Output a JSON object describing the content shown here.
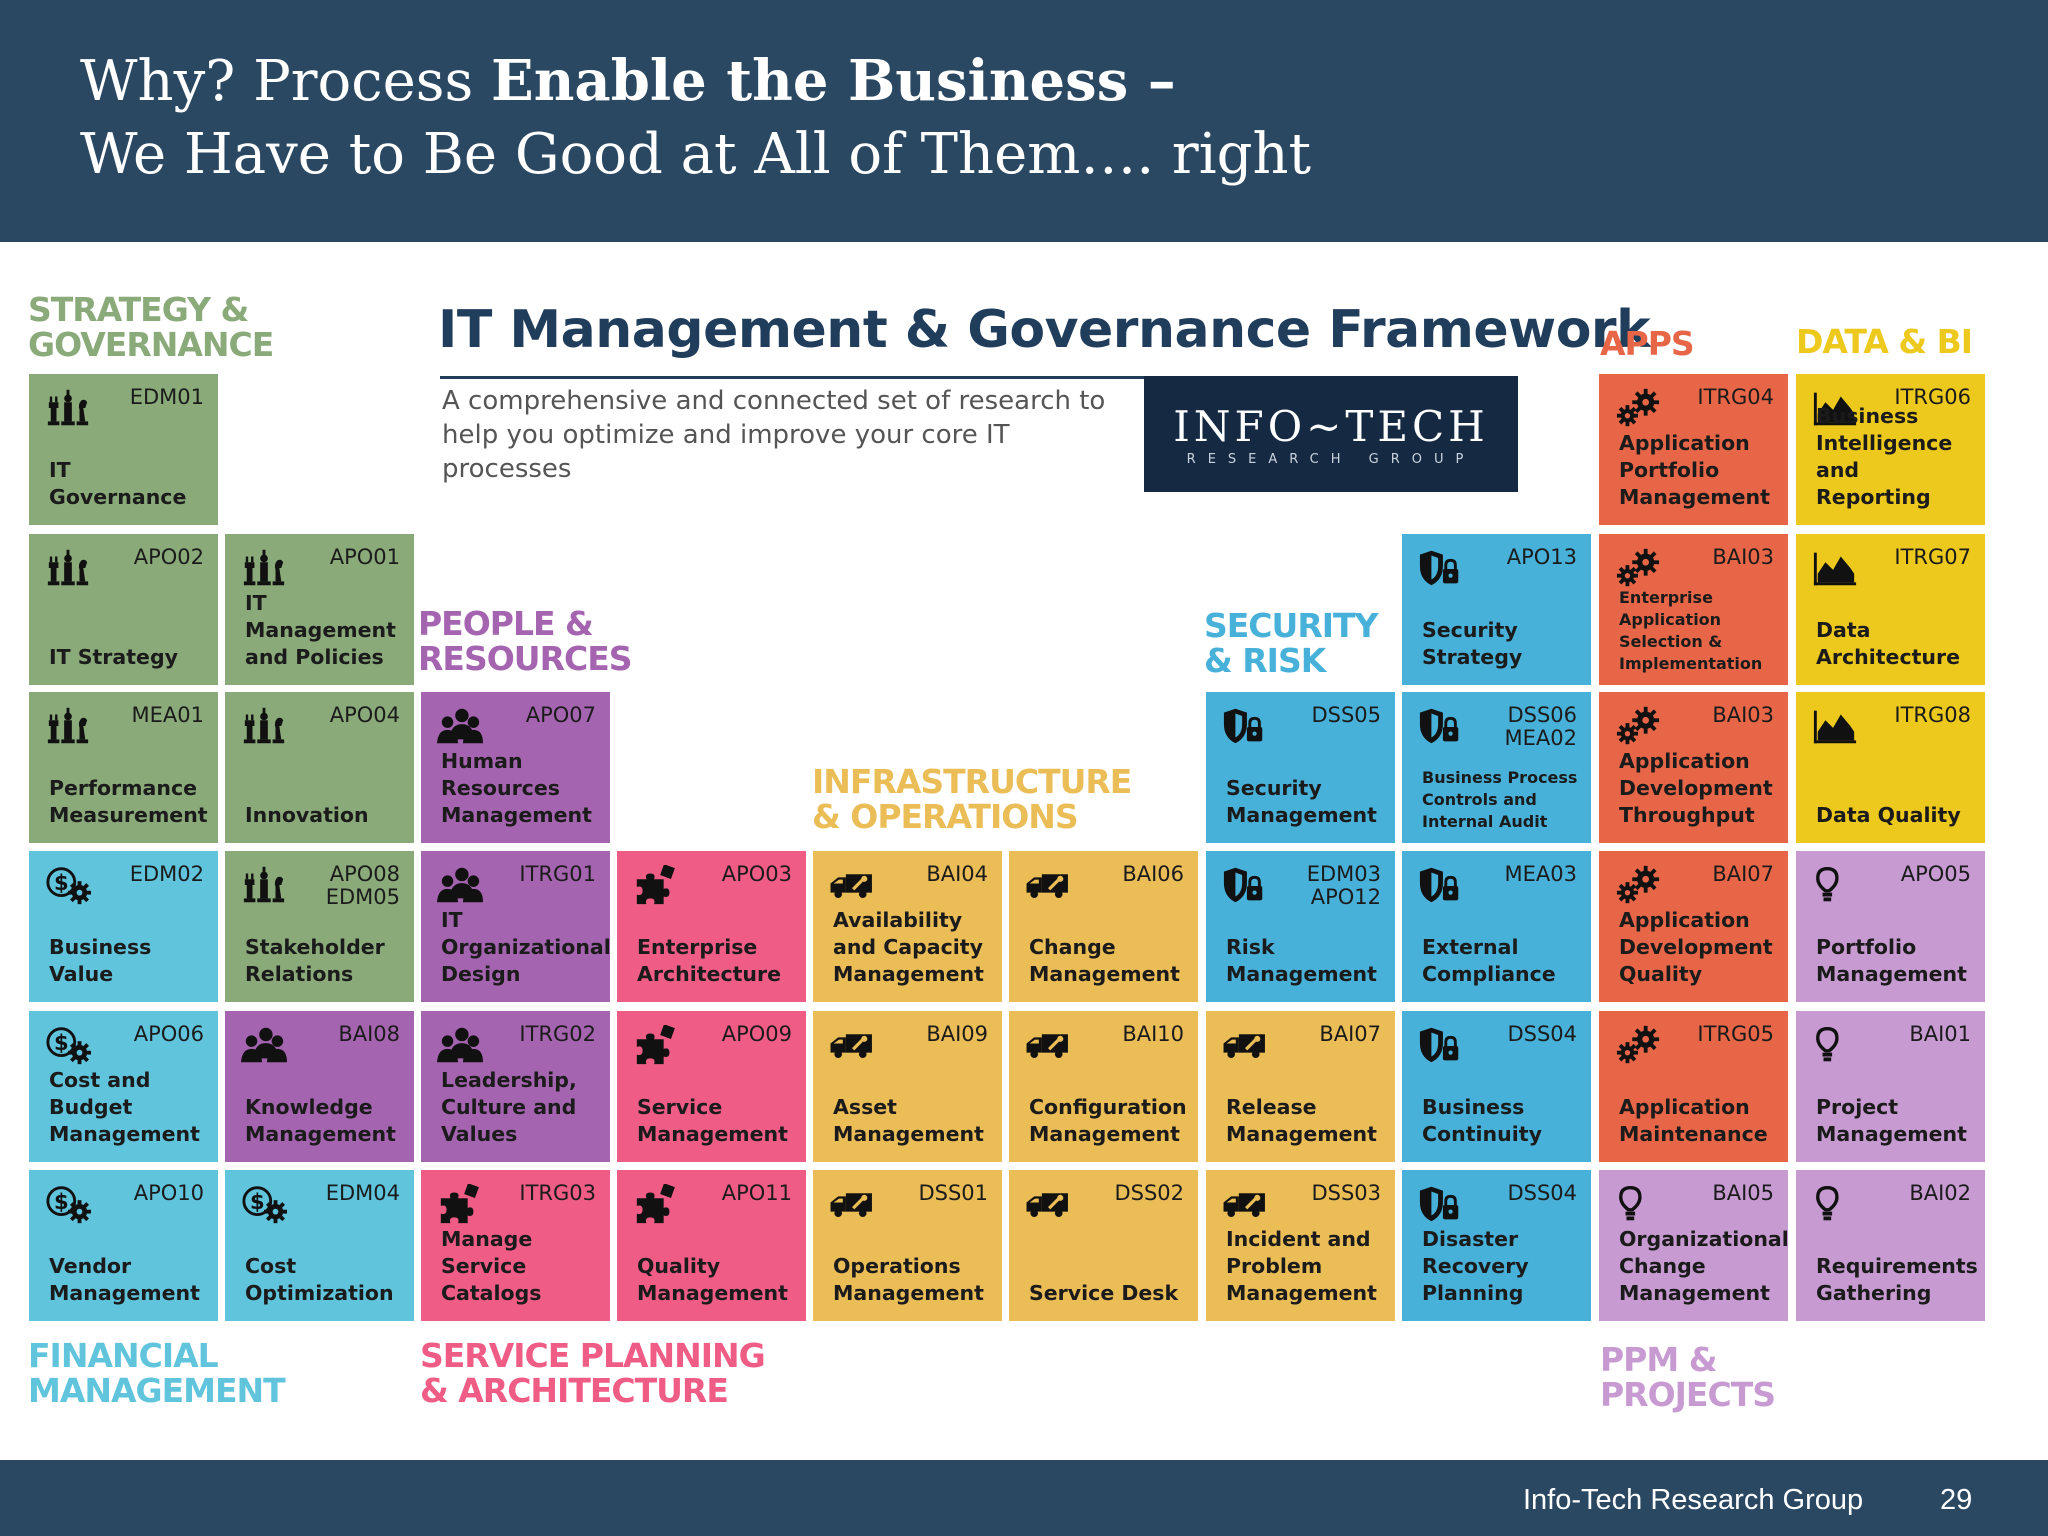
{
  "slide": {
    "title_line1_prefix": "Why? Process ",
    "title_line1_bold": "Enable the Business –",
    "title_line2": "We Have to Be Good at All of Them…. right"
  },
  "framework": {
    "title": "IT Management & Governance Framework",
    "subtitle": "A comprehensive and connected set of research to help you optimize and improve your core IT processes",
    "logo_main": "INFO~TECH",
    "logo_sub": "RESEARCH GROUP"
  },
  "categories": {
    "strategy_l1": "STRATEGY &",
    "strategy_l2": "GOVERNANCE",
    "apps": "APPS",
    "data": "DATA & BI",
    "people_l1": "PEOPLE &",
    "people_l2": "RESOURCES",
    "security_l1": "SECURITY",
    "security_l2": "& RISK",
    "infra_l1": "INFRASTRUCTURE",
    "infra_l2": "& OPERATIONS",
    "financial_l1": "FINANCIAL",
    "financial_l2": "MANAGEMENT",
    "service_l1": "SERVICE PLANNING",
    "service_l2": "& ARCHITECTURE",
    "ppm_l1": "PPM &",
    "ppm_l2": "PROJECTS"
  },
  "tiles": {
    "edm01": {
      "code_a": "EDM01",
      "code_b": "",
      "name": "IT Governance",
      "icon": "chess-icon",
      "color": "#8aaa7a"
    },
    "apo02": {
      "code_a": "APO02",
      "code_b": "",
      "name": "IT Strategy",
      "icon": "chess-icon",
      "color": "#8aaa7a"
    },
    "apo01": {
      "code_a": "APO01",
      "code_b": "",
      "name": "IT Management and Policies",
      "icon": "chess-icon",
      "color": "#8aaa7a"
    },
    "mea01": {
      "code_a": "MEA01",
      "code_b": "",
      "name": "Performance Measurement",
      "icon": "chess-icon",
      "color": "#8aaa7a"
    },
    "apo04": {
      "code_a": "APO04",
      "code_b": "",
      "name": "Innovation",
      "icon": "chess-icon",
      "color": "#8aaa7a"
    },
    "edm02": {
      "code_a": "EDM02",
      "code_b": "",
      "name": "Business Value",
      "icon": "dollar-gear-icon",
      "color": "#5fc4dc"
    },
    "apo08": {
      "code_a": "APO08",
      "code_b": "EDM05",
      "name": "Stakeholder Relations",
      "icon": "chess-icon",
      "color": "#8aaa7a"
    },
    "apo06": {
      "code_a": "APO06",
      "code_b": "",
      "name": "Cost and Budget Management",
      "icon": "dollar-gear-icon",
      "color": "#5fc4dc"
    },
    "bai08": {
      "code_a": "BAI08",
      "code_b": "",
      "name": "Knowledge Management",
      "icon": "people-icon",
      "color": "#a564b0"
    },
    "apo10": {
      "code_a": "APO10",
      "code_b": "",
      "name": "Vendor Management",
      "icon": "dollar-gear-icon",
      "color": "#5fc4dc"
    },
    "edm04": {
      "code_a": "EDM04",
      "code_b": "",
      "name": "Cost Optimization",
      "icon": "dollar-gear-icon",
      "color": "#5fc4dc"
    },
    "apo07": {
      "code_a": "APO07",
      "code_b": "",
      "name": "Human Resources Management",
      "icon": "people-icon",
      "color": "#a564b0"
    },
    "itrg01": {
      "code_a": "ITRG01",
      "code_b": "",
      "name": "IT Organizational Design",
      "icon": "people-icon",
      "color": "#a564b0"
    },
    "itrg02": {
      "code_a": "ITRG02",
      "code_b": "",
      "name": "Leadership, Culture and Values",
      "icon": "people-icon",
      "color": "#a564b0"
    },
    "itrg03": {
      "code_a": "ITRG03",
      "code_b": "",
      "name": "Manage Service Catalogs",
      "icon": "puzzle-icon",
      "color": "#ef5c86"
    },
    "apo03": {
      "code_a": "APO03",
      "code_b": "",
      "name": "Enterprise Architecture",
      "icon": "puzzle-icon",
      "color": "#ef5c86"
    },
    "apo09": {
      "code_a": "APO09",
      "code_b": "",
      "name": "Service Management",
      "icon": "puzzle-icon",
      "color": "#ef5c86"
    },
    "apo11": {
      "code_a": "APO11",
      "code_b": "",
      "name": "Quality Management",
      "icon": "puzzle-icon",
      "color": "#ef5c86"
    },
    "bai04": {
      "code_a": "BAI04",
      "code_b": "",
      "name": "Availability and Capacity Management",
      "icon": "truck-icon",
      "color": "#ebbd57"
    },
    "bai06": {
      "code_a": "BAI06",
      "code_b": "",
      "name": "Change Management",
      "icon": "truck-icon",
      "color": "#ebbd57"
    },
    "bai09": {
      "code_a": "BAI09",
      "code_b": "",
      "name": "Asset Management",
      "icon": "truck-icon",
      "color": "#ebbd57"
    },
    "bai10": {
      "code_a": "BAI10",
      "code_b": "",
      "name": "Configuration Management",
      "icon": "truck-icon",
      "color": "#ebbd57"
    },
    "bai07r": {
      "code_a": "BAI07",
      "code_b": "",
      "name": "Release Management",
      "icon": "truck-icon",
      "color": "#ebbd57"
    },
    "dss01": {
      "code_a": "DSS01",
      "code_b": "",
      "name": "Operations Management",
      "icon": "truck-icon",
      "color": "#ebbd57"
    },
    "dss02": {
      "code_a": "DSS02",
      "code_b": "",
      "name": "Service Desk",
      "icon": "truck-icon",
      "color": "#ebbd57"
    },
    "dss03": {
      "code_a": "DSS03",
      "code_b": "",
      "name": "Incident and Problem Management",
      "icon": "truck-icon",
      "color": "#ebbd57"
    },
    "apo13": {
      "code_a": "APO13",
      "code_b": "",
      "name": "Security Strategy",
      "icon": "shield-lock-icon",
      "color": "#48b1d9"
    },
    "dss05": {
      "code_a": "DSS05",
      "code_b": "",
      "name": "Security Management",
      "icon": "shield-lock-icon",
      "color": "#48b1d9"
    },
    "dss06": {
      "code_a": "DSS06",
      "code_b": "MEA02",
      "name": "Business Process Controls and Internal Audit",
      "icon": "shield-lock-icon",
      "color": "#48b1d9"
    },
    "edm03": {
      "code_a": "EDM03",
      "code_b": "APO12",
      "name": "Risk Management",
      "icon": "shield-lock-icon",
      "color": "#48b1d9"
    },
    "mea03": {
      "code_a": "MEA03",
      "code_b": "",
      "name": "External Compliance",
      "icon": "shield-lock-icon",
      "color": "#48b1d9"
    },
    "dss04a": {
      "code_a": "DSS04",
      "code_b": "",
      "name": "Business Continuity",
      "icon": "shield-lock-icon",
      "color": "#48b1d9"
    },
    "dss04b": {
      "code_a": "DSS04",
      "code_b": "",
      "name": "Disaster Recovery Planning",
      "icon": "shield-lock-icon",
      "color": "#48b1d9"
    },
    "itrg04": {
      "code_a": "ITRG04",
      "code_b": "",
      "name": "Application Portfolio Management",
      "icon": "gears-icon",
      "color": "#e86648"
    },
    "bai03a": {
      "code_a": "BAI03",
      "code_b": "",
      "name": "Enterprise Application Selection & Implementation",
      "icon": "gears-icon",
      "color": "#e86648"
    },
    "bai03b": {
      "code_a": "BAI03",
      "code_b": "",
      "name": "Application Development Throughput",
      "icon": "gears-icon",
      "color": "#e86648"
    },
    "bai07a": {
      "code_a": "BAI07",
      "code_b": "",
      "name": "Application Development Quality",
      "icon": "gears-icon",
      "color": "#e86648"
    },
    "itrg05": {
      "code_a": "ITRG05",
      "code_b": "",
      "name": "Application Maintenance",
      "icon": "gears-icon",
      "color": "#e86648"
    },
    "bai05": {
      "code_a": "BAI05",
      "code_b": "",
      "name": "Organizational Change Management",
      "icon": "bulb-icon",
      "color": "#c79bd1"
    },
    "itrg06": {
      "code_a": "ITRG06",
      "code_b": "",
      "name": "Business Intelligence and Reporting",
      "icon": "area-chart-icon",
      "color": "#ecc91c"
    },
    "itrg07": {
      "code_a": "ITRG07",
      "code_b": "",
      "name": "Data Architecture",
      "icon": "area-chart-icon",
      "color": "#ecc91c"
    },
    "itrg08": {
      "code_a": "ITRG08",
      "code_b": "",
      "name": "Data Quality",
      "icon": "area-chart-icon",
      "color": "#ecc91c"
    },
    "apo05": {
      "code_a": "APO05",
      "code_b": "",
      "name": "Portfolio Management",
      "icon": "bulb-icon",
      "color": "#c79bd1"
    },
    "bai01": {
      "code_a": "BAI01",
      "code_b": "",
      "name": "Project Management",
      "icon": "bulb-icon",
      "color": "#c79bd1"
    },
    "bai02": {
      "code_a": "BAI02",
      "code_b": "",
      "name": "Requirements Gathering",
      "icon": "bulb-icon",
      "color": "#c79bd1"
    }
  },
  "footer": {
    "org": "Info-Tech Research Group",
    "page": "29"
  }
}
